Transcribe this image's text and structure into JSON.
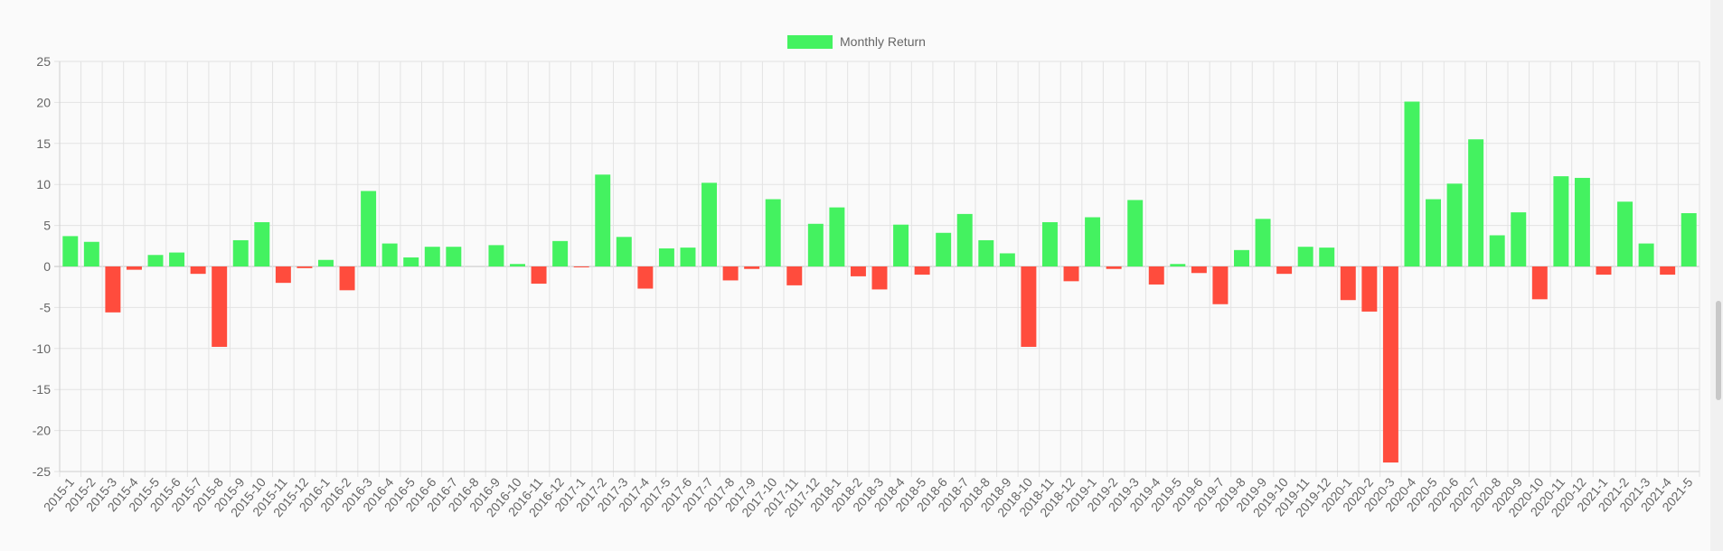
{
  "chart_data": {
    "type": "bar",
    "legend": {
      "label": "Monthly Return",
      "position": "top-center"
    },
    "grid": true,
    "ylim": [
      -25,
      25
    ],
    "yticks": [
      25,
      20,
      15,
      10,
      5,
      0,
      -5,
      -10,
      -15,
      -20,
      -25
    ],
    "colors": {
      "positive": "#44f260",
      "negative": "#ff4c3d"
    },
    "categories": [
      "2015-1",
      "2015-2",
      "2015-3",
      "2015-4",
      "2015-5",
      "2015-6",
      "2015-7",
      "2015-8",
      "2015-9",
      "2015-10",
      "2015-11",
      "2015-12",
      "2016-1",
      "2016-2",
      "2016-3",
      "2016-4",
      "2016-5",
      "2016-6",
      "2016-7",
      "2016-8",
      "2016-9",
      "2016-10",
      "2016-11",
      "2016-12",
      "2017-1",
      "2017-2",
      "2017-3",
      "2017-4",
      "2017-5",
      "2017-6",
      "2017-7",
      "2017-8",
      "2017-9",
      "2017-10",
      "2017-11",
      "2017-12",
      "2018-1",
      "2018-2",
      "2018-3",
      "2018-4",
      "2018-5",
      "2018-6",
      "2018-7",
      "2018-8",
      "2018-9",
      "2018-10",
      "2018-11",
      "2018-12",
      "2019-1",
      "2019-2",
      "2019-3",
      "2019-4",
      "2019-5",
      "2019-6",
      "2019-7",
      "2019-8",
      "2019-9",
      "2019-10",
      "2019-11",
      "2019-12",
      "2020-1",
      "2020-2",
      "2020-3",
      "2020-4",
      "2020-5",
      "2020-6",
      "2020-7",
      "2020-8",
      "2020-9",
      "2020-10",
      "2020-11",
      "2020-12",
      "2021-1",
      "2021-2",
      "2021-3",
      "2021-4",
      "2021-5"
    ],
    "values": [
      3.7,
      3.0,
      -5.6,
      -0.4,
      1.4,
      1.7,
      -0.9,
      -9.8,
      3.2,
      5.4,
      -2.0,
      -0.2,
      0.8,
      -2.9,
      9.2,
      2.8,
      1.1,
      2.4,
      2.4,
      0,
      2.6,
      0.3,
      -2.1,
      3.1,
      -0.1,
      11.2,
      3.6,
      -2.7,
      2.2,
      2.3,
      10.2,
      -1.7,
      -0.3,
      8.2,
      -2.3,
      5.2,
      7.2,
      -1.2,
      -2.8,
      5.1,
      -1.0,
      4.1,
      6.4,
      3.2,
      1.6,
      -9.8,
      5.4,
      -1.8,
      6.0,
      -0.3,
      8.1,
      -2.2,
      0.3,
      -0.8,
      -4.6,
      2.0,
      5.8,
      -0.9,
      2.4,
      2.3,
      -4.1,
      -5.5,
      -23.9,
      20.1,
      8.2,
      10.1,
      15.5,
      3.8,
      6.6,
      -4.0,
      11.0,
      10.8,
      -1.0,
      7.9,
      2.8,
      -1.0,
      6.5
    ]
  }
}
